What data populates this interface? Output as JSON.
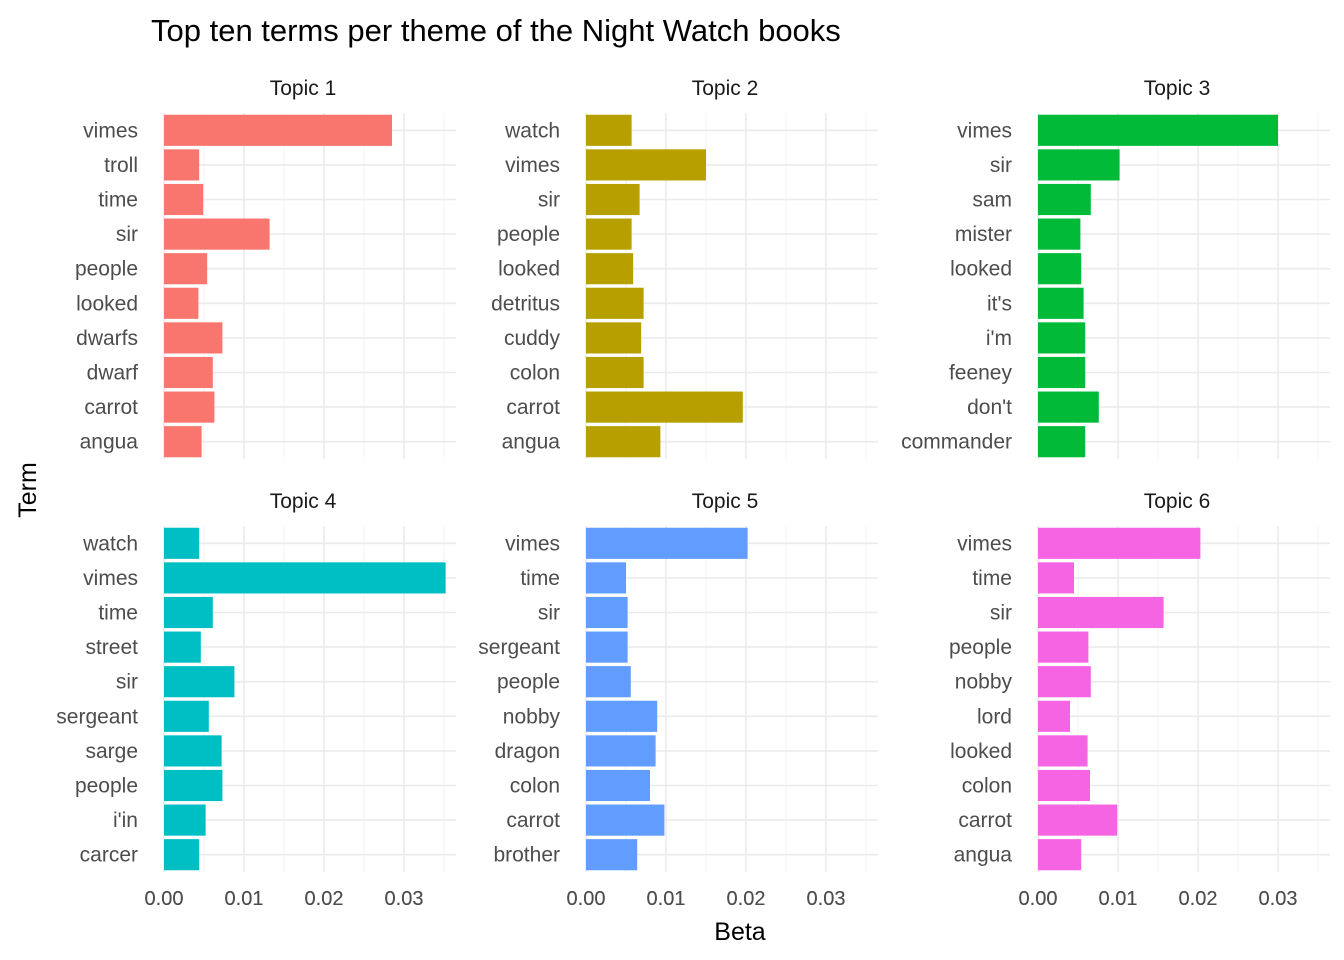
{
  "chart_data": {
    "type": "bar",
    "orientation": "horizontal",
    "title": "Top ten terms per theme of the Night Watch books",
    "xlabel": "Beta",
    "ylabel": "Term",
    "xlim": [
      0,
      0.0365
    ],
    "x_ticks": [
      "0.00",
      "0.01",
      "0.02",
      "0.03"
    ],
    "grid": true,
    "legend": "none",
    "panels": [
      {
        "name": "Topic 1",
        "color": "#F8766D",
        "terms": [
          "vimes",
          "troll",
          "time",
          "sir",
          "people",
          "looked",
          "dwarfs",
          "dwarf",
          "carrot",
          "angua"
        ],
        "values": [
          0.0285,
          0.0044,
          0.0049,
          0.0132,
          0.0054,
          0.0043,
          0.0073,
          0.0061,
          0.0063,
          0.0047
        ]
      },
      {
        "name": "Topic 2",
        "color": "#B79F00",
        "terms": [
          "watch",
          "vimes",
          "sir",
          "people",
          "looked",
          "detritus",
          "cuddy",
          "colon",
          "carrot",
          "angua"
        ],
        "values": [
          0.0057,
          0.015,
          0.0067,
          0.0057,
          0.0059,
          0.0072,
          0.0069,
          0.0072,
          0.0196,
          0.0093
        ]
      },
      {
        "name": "Topic 3",
        "color": "#00BA38",
        "terms": [
          "vimes",
          "sir",
          "sam",
          "mister",
          "looked",
          "it's",
          "i'm",
          "feeney",
          "don't",
          "commander"
        ],
        "values": [
          0.03,
          0.0102,
          0.0066,
          0.0053,
          0.0054,
          0.0057,
          0.0059,
          0.0059,
          0.0076,
          0.0059
        ]
      },
      {
        "name": "Topic 4",
        "color": "#00BFC4",
        "terms": [
          "watch",
          "vimes",
          "time",
          "street",
          "sir",
          "sergeant",
          "sarge",
          "people",
          "i'in",
          "carcer"
        ],
        "values": [
          0.0044,
          0.0352,
          0.0061,
          0.0046,
          0.0088,
          0.0056,
          0.0072,
          0.0073,
          0.0052,
          0.0044
        ]
      },
      {
        "name": "Topic 5",
        "color": "#619CFF",
        "terms": [
          "vimes",
          "time",
          "sir",
          "sergeant",
          "people",
          "nobby",
          "dragon",
          "colon",
          "carrot",
          "brother"
        ],
        "values": [
          0.0202,
          0.005,
          0.0052,
          0.0052,
          0.0056,
          0.0089,
          0.0087,
          0.008,
          0.0098,
          0.0064
        ]
      },
      {
        "name": "Topic 6",
        "color": "#F564E3",
        "terms": [
          "vimes",
          "time",
          "sir",
          "people",
          "nobby",
          "lord",
          "looked",
          "colon",
          "carrot",
          "angua"
        ],
        "values": [
          0.0203,
          0.0045,
          0.0157,
          0.0063,
          0.0066,
          0.004,
          0.0062,
          0.0065,
          0.0099,
          0.0054
        ]
      }
    ]
  }
}
